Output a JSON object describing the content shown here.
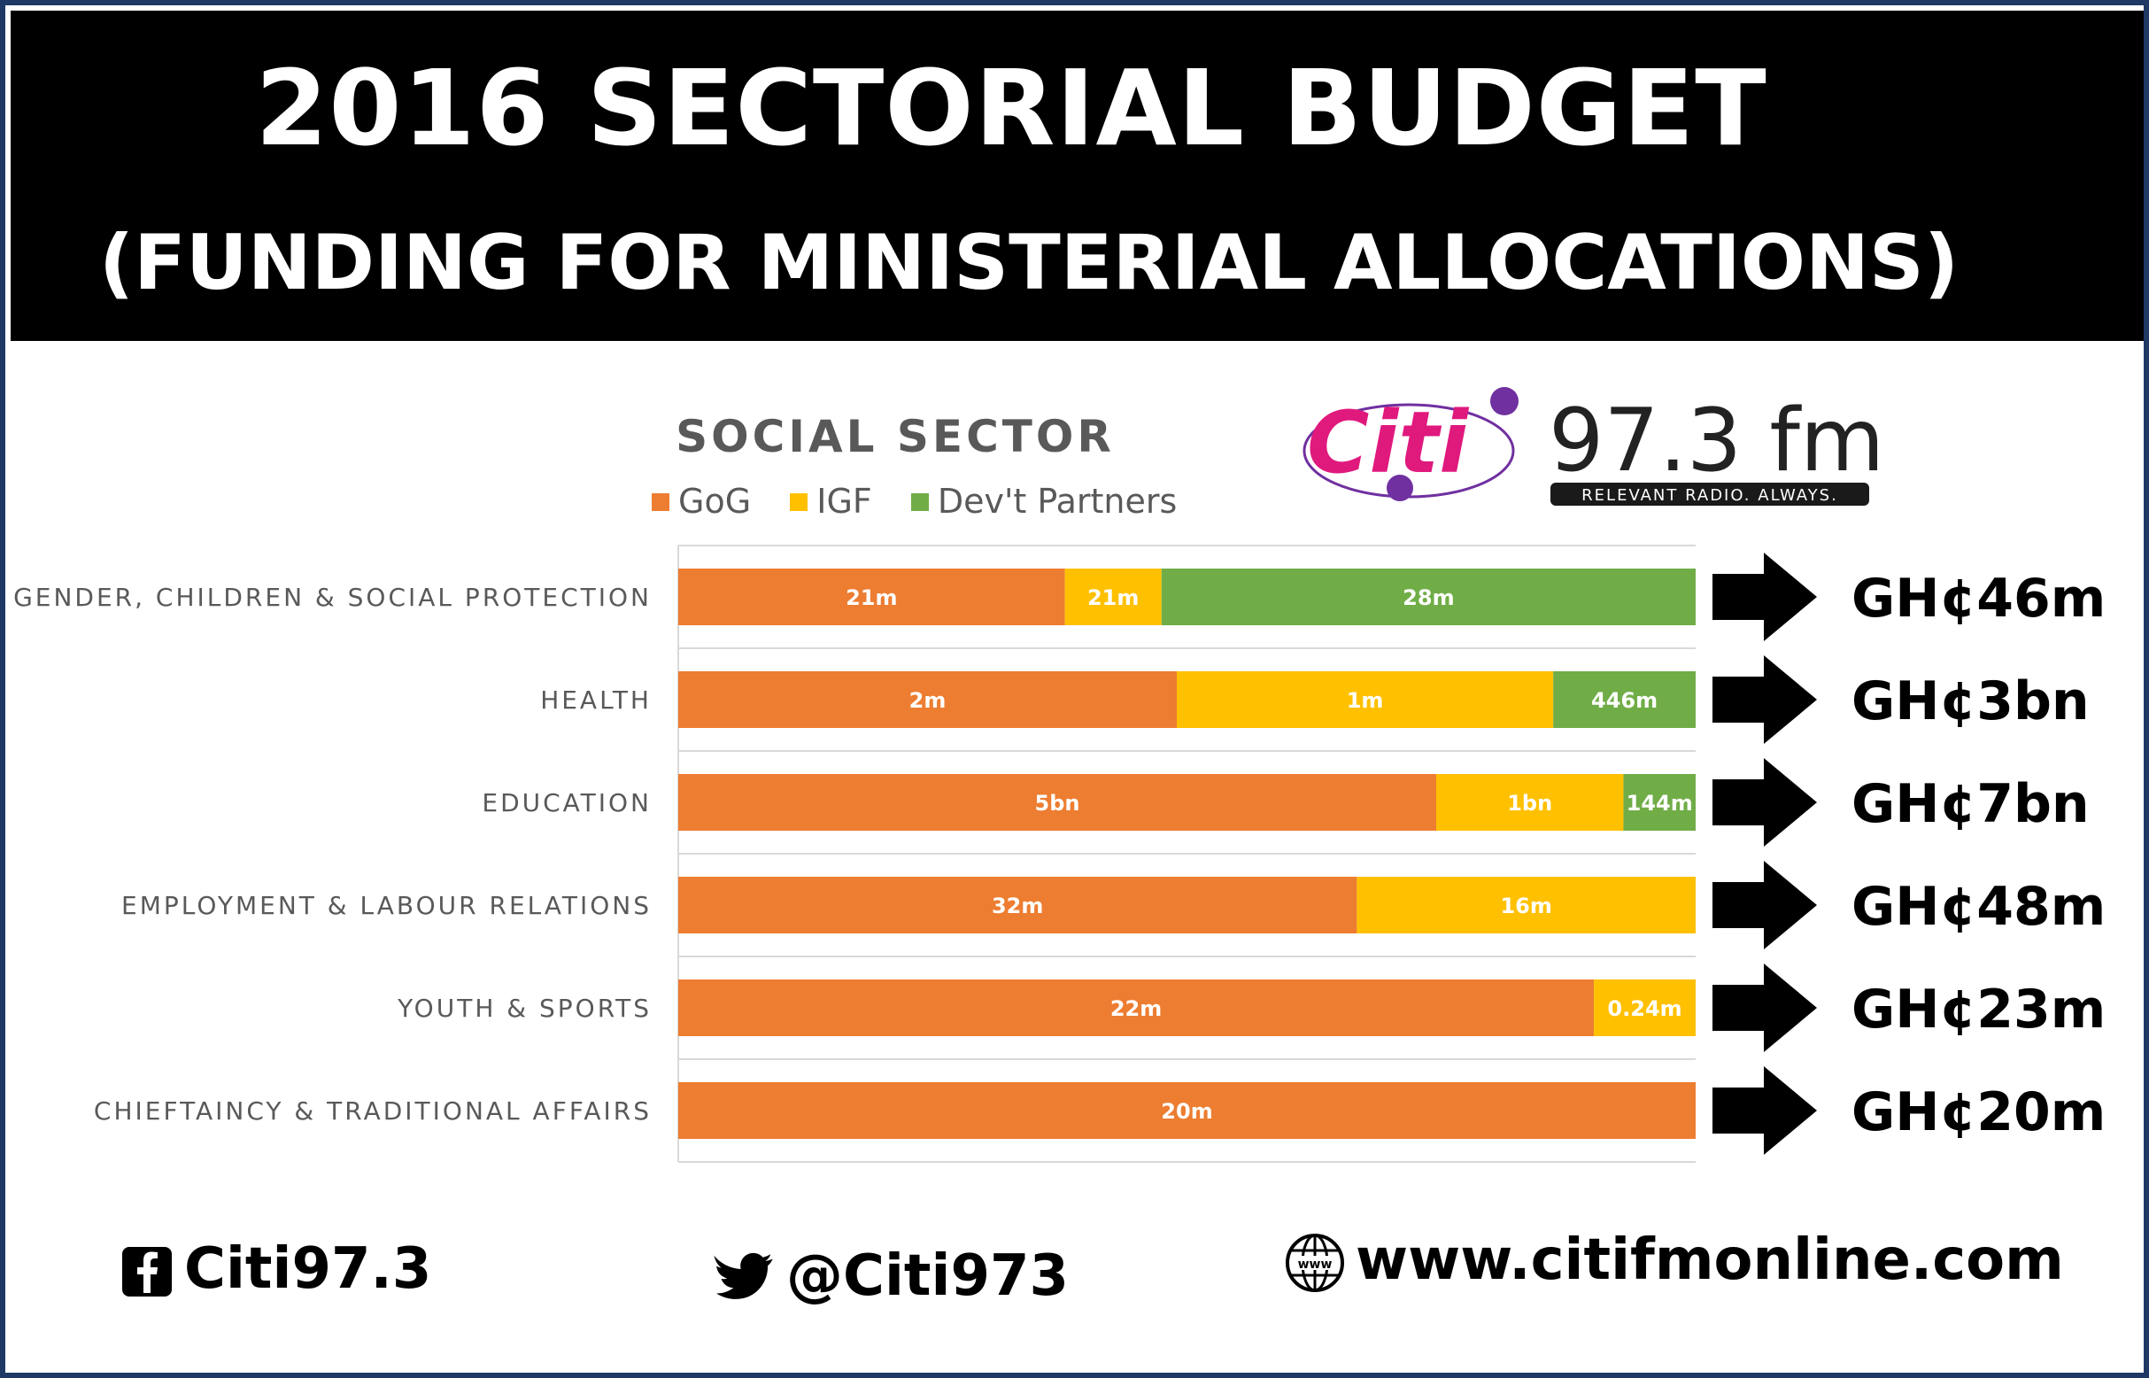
{
  "header": {
    "title": "2016 SECTORIAL BUDGET",
    "subtitle": "(FUNDING FOR MINISTERIAL ALLOCATIONS)"
  },
  "logo": {
    "brand": "Citi",
    "frequency": "97.3 fm",
    "tagline": "RELEVANT RADIO. ALWAYS."
  },
  "colors": {
    "gog": "#ed7d31",
    "igf": "#ffc000",
    "dev": "#70ad47",
    "frame": "#1f3864",
    "logo_pink": "#e0197d",
    "logo_purple": "#7030a0"
  },
  "chart_data": {
    "type": "bar",
    "orientation": "horizontal",
    "stacking": "percent",
    "title": "SOCIAL SECTOR",
    "legend_position": "top",
    "grid": false,
    "categories": [
      "GENDER, CHILDREN & SOCIAL PROTECTION",
      "HEALTH",
      "EDUCATION",
      "EMPLOYMENT & LABOUR RELATIONS",
      "YOUTH & SPORTS",
      "CHIEFTAINCY & TRADITIONAL AFFAIRS"
    ],
    "series": [
      {
        "name": "GoG",
        "key": "gog",
        "share": [
          0.38,
          0.49,
          0.745,
          0.667,
          0.9,
          1.0
        ],
        "labels": [
          "21m",
          "2m",
          "5bn",
          "32m",
          "22m",
          "20m"
        ]
      },
      {
        "name": "IGF",
        "key": "igf",
        "share": [
          0.095,
          0.37,
          0.184,
          0.333,
          0.1,
          0
        ],
        "labels": [
          "21m",
          "1m",
          "1bn",
          "16m",
          "0.24m",
          ""
        ]
      },
      {
        "name": "Dev't Partners",
        "key": "dev",
        "share": [
          0.525,
          0.14,
          0.071,
          0,
          0,
          0
        ],
        "labels": [
          "28m",
          "446m",
          "144m",
          "",
          "",
          ""
        ]
      }
    ],
    "totals": [
      "GH¢46m",
      "GH¢3bn",
      "GH¢7bn",
      "GH¢48m",
      "GH¢23m",
      "GH¢20m"
    ]
  },
  "footer": {
    "facebook": "Citi97.3",
    "twitter": "@Citi973",
    "website": "www.citifmonline.com"
  },
  "icons": {
    "facebook": "facebook-icon",
    "twitter": "twitter-bird-icon",
    "web": "globe-www-icon",
    "arrow": "right-arrow-icon"
  }
}
